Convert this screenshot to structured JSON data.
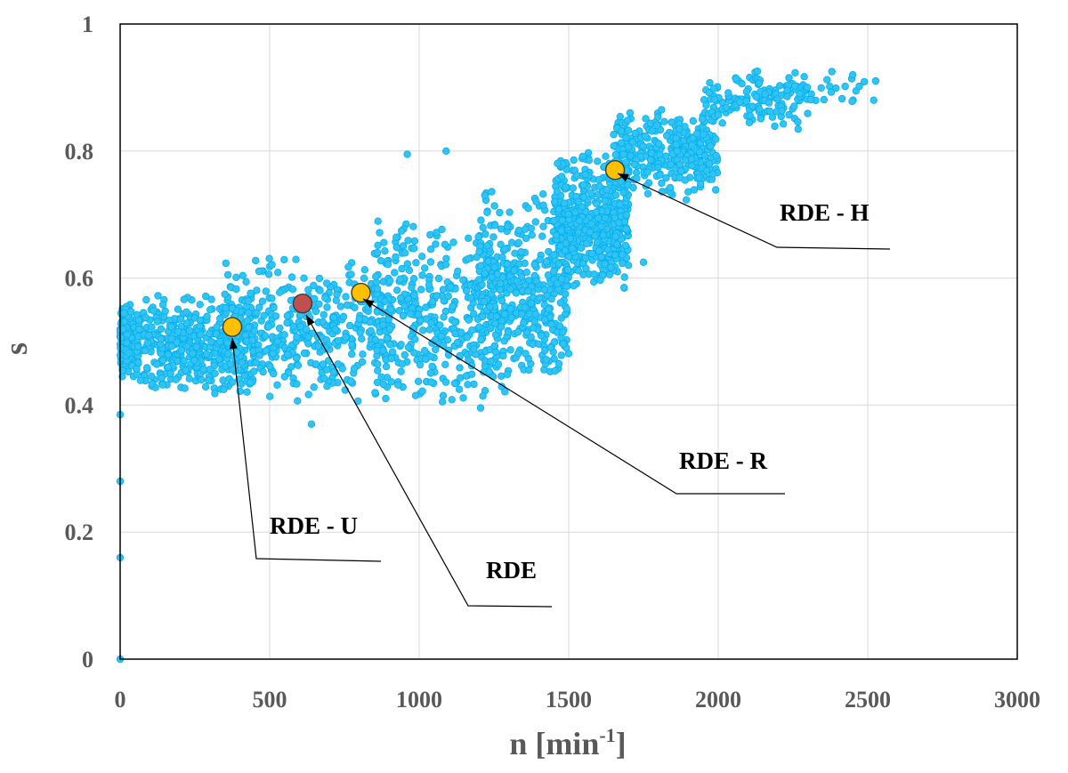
{
  "colors": {
    "scatter": "#00b0f0",
    "scatter_fill": "#33c3f2",
    "highlight": "#ffc000",
    "rde": "#c0504d",
    "grid": "#d9d9d9",
    "axis": "#000000",
    "text": "#595959"
  },
  "chart_data": {
    "type": "scatter",
    "xlabel": "n [min",
    "xlabel_sup": "-1",
    "xlabel_end": "]",
    "ylabel": "s",
    "xlim": [
      0,
      3000
    ],
    "ylim": [
      0,
      1
    ],
    "x_ticks": [
      {
        "value": 0,
        "label": "0"
      },
      {
        "value": 500,
        "label": "500"
      },
      {
        "value": 1000,
        "label": "1000"
      },
      {
        "value": 1500,
        "label": "1500"
      },
      {
        "value": 2000,
        "label": "2000"
      },
      {
        "value": 2500,
        "label": "2500"
      },
      {
        "value": 3000,
        "label": "3000"
      }
    ],
    "y_ticks": [
      {
        "value": 0,
        "label": "0"
      },
      {
        "value": 0.2,
        "label": "0.2"
      },
      {
        "value": 0.4,
        "label": "0.4"
      },
      {
        "value": 0.6,
        "label": "0.6"
      },
      {
        "value": 0.8,
        "label": "0.8"
      },
      {
        "value": 1,
        "label": "1"
      }
    ],
    "grid": true,
    "scatter_clusters": [
      {
        "x_min": 0,
        "x_max": 60,
        "y_min": 0.44,
        "y_max": 0.56,
        "count": 220
      },
      {
        "x_min": 50,
        "x_max": 450,
        "y_min": 0.41,
        "y_max": 0.58,
        "count": 420
      },
      {
        "x_min": 350,
        "x_max": 900,
        "y_min": 0.4,
        "y_max": 0.64,
        "count": 430
      },
      {
        "x_min": 850,
        "x_max": 1300,
        "y_min": 0.39,
        "y_max": 0.7,
        "count": 430
      },
      {
        "x_min": 1200,
        "x_max": 1500,
        "y_min": 0.42,
        "y_max": 0.74,
        "count": 380
      },
      {
        "x_min": 1450,
        "x_max": 1700,
        "y_min": 0.58,
        "y_max": 0.8,
        "count": 520
      },
      {
        "x_min": 1650,
        "x_max": 2000,
        "y_min": 0.72,
        "y_max": 0.87,
        "count": 320
      },
      {
        "x_min": 1950,
        "x_max": 2300,
        "y_min": 0.83,
        "y_max": 0.93,
        "count": 160
      },
      {
        "x_min": 2250,
        "x_max": 2530,
        "y_min": 0.87,
        "y_max": 0.93,
        "count": 25
      }
    ],
    "scatter_points": [
      {
        "x": 0,
        "y": 0
      },
      {
        "x": 0,
        "y": 0.16
      },
      {
        "x": 0,
        "y": 0.28
      },
      {
        "x": 0,
        "y": 0.385
      },
      {
        "x": 960,
        "y": 0.795
      },
      {
        "x": 1090,
        "y": 0.8
      },
      {
        "x": 1750,
        "y": 0.625
      },
      {
        "x": 1700,
        "y": 0.62
      },
      {
        "x": 2450,
        "y": 0.92
      },
      {
        "x": 2520,
        "y": 0.88
      },
      {
        "x": 2380,
        "y": 0.925
      },
      {
        "x": 640,
        "y": 0.37
      }
    ],
    "highlighted_points": [
      {
        "name": "RDE - U",
        "x": 375,
        "y": 0.523,
        "color": "#ffc000"
      },
      {
        "name": "RDE",
        "x": 610,
        "y": 0.56,
        "color": "#c0504d"
      },
      {
        "name": "RDE - R",
        "x": 805,
        "y": 0.577,
        "color": "#ffc000"
      },
      {
        "name": "RDE - H",
        "x": 1655,
        "y": 0.77,
        "color": "#ffc000"
      }
    ]
  }
}
